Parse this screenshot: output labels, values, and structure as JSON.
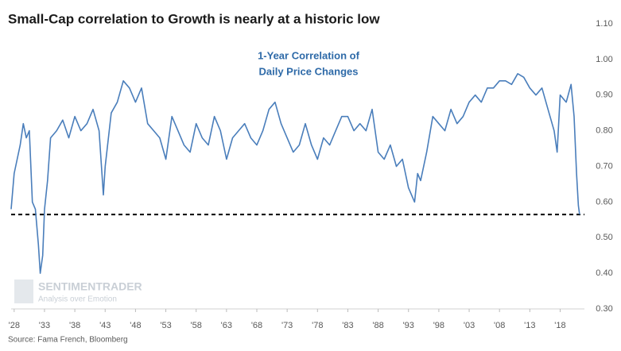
{
  "chart_data": {
    "type": "line",
    "title": "Small-Cap correlation to Growth is nearly at a historic low",
    "annotation": [
      "1-Year Correlation of",
      "Daily Price Changes"
    ],
    "source": "Source: Fama French, Bloomberg",
    "watermark": [
      "SENTIMENTRADER",
      "Analysis over Emotion"
    ],
    "x": [
      1927.5,
      1928,
      1928.5,
      1929,
      1929.5,
      1930,
      1930.5,
      1931,
      1931.5,
      1932,
      1932.3,
      1932.7,
      1933,
      1933.5,
      1934,
      1935,
      1936,
      1937,
      1938,
      1939,
      1940,
      1941,
      1942,
      1942.7,
      1943,
      1944,
      1945,
      1946,
      1947,
      1948,
      1949,
      1950,
      1951,
      1952,
      1953,
      1954,
      1955,
      1956,
      1957,
      1958,
      1959,
      1960,
      1961,
      1962,
      1963,
      1964,
      1965,
      1966,
      1967,
      1968,
      1969,
      1970,
      1971,
      1972,
      1973,
      1974,
      1975,
      1976,
      1977,
      1978,
      1979,
      1980,
      1981,
      1982,
      1983,
      1984,
      1985,
      1986,
      1987,
      1988,
      1989,
      1990,
      1991,
      1992,
      1993,
      1994,
      1994.5,
      1995,
      1996,
      1997,
      1998,
      1999,
      2000,
      2001,
      2002,
      2003,
      2004,
      2005,
      2006,
      2007,
      2008,
      2009,
      2010,
      2011,
      2012,
      2013,
      2014,
      2015,
      2016,
      2017,
      2017.5,
      2018,
      2019,
      2019.8,
      2020.3,
      2020.7,
      2021,
      2021.2
    ],
    "series": [
      {
        "name": "1-Year Correlation",
        "color": "#4a7ebb",
        "values": [
          0.58,
          0.68,
          0.72,
          0.76,
          0.82,
          0.78,
          0.8,
          0.6,
          0.58,
          0.48,
          0.4,
          0.45,
          0.58,
          0.66,
          0.78,
          0.8,
          0.83,
          0.78,
          0.84,
          0.8,
          0.82,
          0.86,
          0.8,
          0.62,
          0.7,
          0.85,
          0.88,
          0.94,
          0.92,
          0.88,
          0.92,
          0.82,
          0.8,
          0.78,
          0.72,
          0.84,
          0.8,
          0.76,
          0.74,
          0.82,
          0.78,
          0.76,
          0.84,
          0.8,
          0.72,
          0.78,
          0.8,
          0.82,
          0.78,
          0.76,
          0.8,
          0.86,
          0.88,
          0.82,
          0.78,
          0.74,
          0.76,
          0.82,
          0.76,
          0.72,
          0.78,
          0.76,
          0.8,
          0.84,
          0.84,
          0.8,
          0.82,
          0.8,
          0.86,
          0.74,
          0.72,
          0.76,
          0.7,
          0.72,
          0.64,
          0.6,
          0.68,
          0.66,
          0.74,
          0.84,
          0.82,
          0.8,
          0.86,
          0.82,
          0.84,
          0.88,
          0.9,
          0.88,
          0.92,
          0.92,
          0.94,
          0.94,
          0.93,
          0.96,
          0.95,
          0.92,
          0.9,
          0.92,
          0.86,
          0.8,
          0.74,
          0.9,
          0.88,
          0.93,
          0.84,
          0.68,
          0.59,
          0.565
        ]
      }
    ],
    "reference_line": 0.565,
    "xlim": [
      1927.5,
      2022
    ],
    "ylim": [
      0.3,
      1.1
    ],
    "xticks": [
      {
        "value": 1928,
        "label": "'28"
      },
      {
        "value": 1933,
        "label": "'33"
      },
      {
        "value": 1938,
        "label": "'38"
      },
      {
        "value": 1943,
        "label": "'43"
      },
      {
        "value": 1948,
        "label": "'48"
      },
      {
        "value": 1953,
        "label": "'53"
      },
      {
        "value": 1958,
        "label": "'58"
      },
      {
        "value": 1963,
        "label": "'63"
      },
      {
        "value": 1968,
        "label": "'68"
      },
      {
        "value": 1973,
        "label": "'73"
      },
      {
        "value": 1978,
        "label": "'78"
      },
      {
        "value": 1983,
        "label": "'83"
      },
      {
        "value": 1988,
        "label": "'88"
      },
      {
        "value": 1993,
        "label": "'93"
      },
      {
        "value": 1998,
        "label": "'98"
      },
      {
        "value": 2003,
        "label": "'03"
      },
      {
        "value": 2008,
        "label": "'08"
      },
      {
        "value": 2013,
        "label": "'13"
      },
      {
        "value": 2018,
        "label": "'18"
      }
    ],
    "yticks": [
      {
        "value": 0.3,
        "label": "0.30"
      },
      {
        "value": 0.4,
        "label": "0.40"
      },
      {
        "value": 0.5,
        "label": "0.50"
      },
      {
        "value": 0.6,
        "label": "0.60"
      },
      {
        "value": 0.7,
        "label": "0.70"
      },
      {
        "value": 0.8,
        "label": "0.80"
      },
      {
        "value": 0.9,
        "label": "0.90"
      },
      {
        "value": 1.0,
        "label": "1.00"
      },
      {
        "value": 1.1,
        "label": "1.10"
      }
    ],
    "grid": false
  }
}
